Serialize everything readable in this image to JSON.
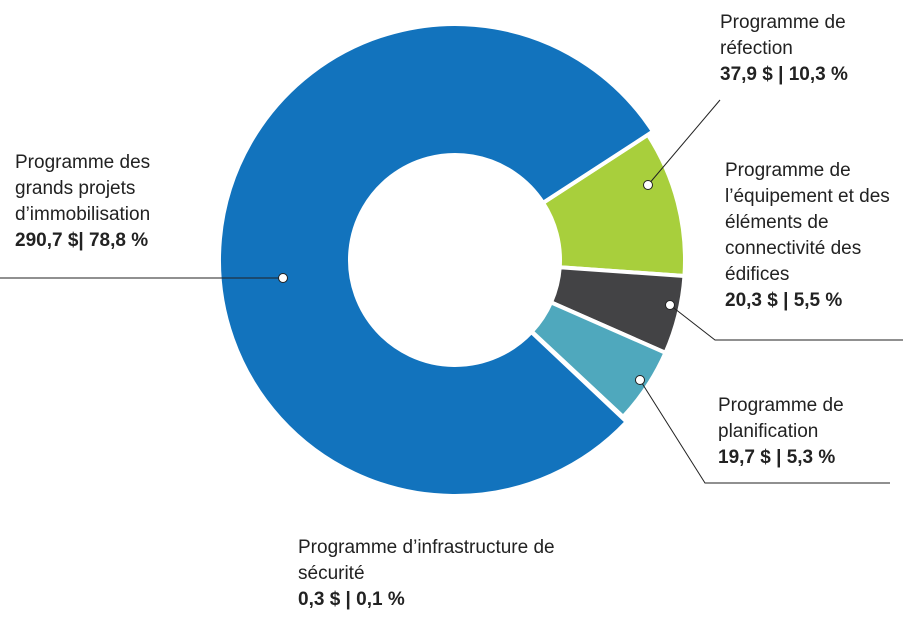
{
  "chart_data": {
    "type": "donut",
    "categories": [
      "Programme de réfection",
      "Programme de l’équipement et des éléments de connectivité des édifices",
      "Programme de planification",
      "Programme d’infrastructure de sécurité",
      "Programme des grands projets d’immobilisation"
    ],
    "values": [
      37.9,
      20.3,
      19.7,
      0.3,
      290.7
    ],
    "value_labels": [
      "37,9 $ | 10,3 %",
      "20,3 $ | 5,5 %",
      "19,7 $ | 5,3 %",
      "0,3 $ | 0,1 %",
      "290,7 $| 78,8 %"
    ],
    "colors": [
      "#a8cf3c",
      "#434345",
      "#4fa8bd",
      "#8a8a8a",
      "#1273bd"
    ]
  }
}
